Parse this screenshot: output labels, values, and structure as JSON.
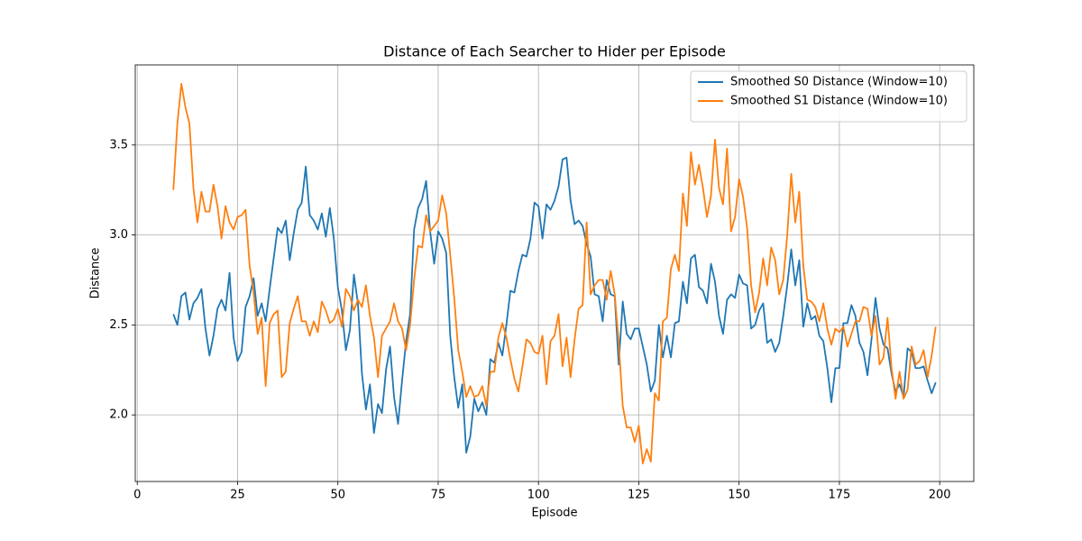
{
  "chart_data": {
    "type": "line",
    "title": "Distance of Each Searcher to Hider per Episode",
    "x_label": "Episode",
    "y_label": "Distance",
    "x": [
      9,
      10,
      11,
      12,
      13,
      14,
      15,
      16,
      17,
      18,
      19,
      20,
      21,
      22,
      23,
      24,
      25,
      26,
      27,
      28,
      29,
      30,
      31,
      32,
      33,
      34,
      35,
      36,
      37,
      38,
      39,
      40,
      41,
      42,
      43,
      44,
      45,
      46,
      47,
      48,
      49,
      50,
      51,
      52,
      53,
      54,
      55,
      56,
      57,
      58,
      59,
      60,
      61,
      62,
      63,
      64,
      65,
      66,
      67,
      68,
      69,
      70,
      71,
      72,
      73,
      74,
      75,
      76,
      77,
      78,
      79,
      80,
      81,
      82,
      83,
      84,
      85,
      86,
      87,
      88,
      89,
      90,
      91,
      92,
      93,
      94,
      95,
      96,
      97,
      98,
      99,
      100,
      101,
      102,
      103,
      104,
      105,
      106,
      107,
      108,
      109,
      110,
      111,
      112,
      113,
      114,
      115,
      116,
      117,
      118,
      119,
      120,
      121,
      122,
      123,
      124,
      125,
      126,
      127,
      128,
      129,
      130,
      131,
      132,
      133,
      134,
      135,
      136,
      137,
      138,
      139,
      140,
      141,
      142,
      143,
      144,
      145,
      146,
      147,
      148,
      149,
      150,
      151,
      152,
      153,
      154,
      155,
      156,
      157,
      158,
      159,
      160,
      161,
      162,
      163,
      164,
      165,
      166,
      167,
      168,
      169,
      170,
      171,
      172,
      173,
      174,
      175,
      176,
      177,
      178,
      179,
      180,
      181,
      182,
      183,
      184,
      185,
      186,
      187,
      188,
      189,
      190,
      191,
      192,
      193,
      194,
      195,
      196,
      197,
      198,
      199
    ],
    "series": [
      {
        "name": "Smoothed S0 Distance (Window=10)",
        "color": "#1f77b4",
        "values": [
          2.56,
          2.5,
          2.66,
          2.68,
          2.53,
          2.62,
          2.65,
          2.7,
          2.48,
          2.33,
          2.44,
          2.59,
          2.64,
          2.58,
          2.79,
          2.43,
          2.3,
          2.35,
          2.6,
          2.66,
          2.76,
          2.55,
          2.62,
          2.52,
          2.7,
          2.87,
          3.04,
          3.01,
          3.08,
          2.86,
          3.01,
          3.14,
          3.18,
          3.38,
          3.11,
          3.08,
          3.03,
          3.12,
          2.99,
          3.15,
          2.98,
          2.71,
          2.58,
          2.36,
          2.47,
          2.78,
          2.62,
          2.23,
          2.03,
          2.17,
          1.9,
          2.06,
          2.01,
          2.25,
          2.38,
          2.1,
          1.95,
          2.19,
          2.41,
          2.56,
          3.03,
          3.15,
          3.2,
          3.3,
          3.02,
          2.84,
          3.02,
          2.98,
          2.9,
          2.44,
          2.21,
          2.04,
          2.17,
          1.79,
          1.88,
          2.09,
          2.02,
          2.07,
          2.0,
          2.31,
          2.29,
          2.4,
          2.33,
          2.5,
          2.69,
          2.68,
          2.8,
          2.89,
          2.88,
          2.98,
          3.18,
          3.16,
          2.98,
          3.17,
          3.14,
          3.19,
          3.27,
          3.42,
          3.43,
          3.19,
          3.06,
          3.08,
          3.05,
          2.95,
          2.88,
          2.67,
          2.66,
          2.52,
          2.75,
          2.67,
          2.66,
          2.28,
          2.63,
          2.45,
          2.42,
          2.48,
          2.48,
          2.38,
          2.28,
          2.13,
          2.19,
          2.5,
          2.32,
          2.44,
          2.32,
          2.51,
          2.52,
          2.74,
          2.62,
          2.87,
          2.89,
          2.71,
          2.69,
          2.62,
          2.84,
          2.74,
          2.55,
          2.45,
          2.64,
          2.67,
          2.65,
          2.78,
          2.73,
          2.72,
          2.48,
          2.5,
          2.58,
          2.62,
          2.4,
          2.42,
          2.35,
          2.4,
          2.55,
          2.72,
          2.92,
          2.72,
          2.86,
          2.49,
          2.62,
          2.53,
          2.55,
          2.44,
          2.41,
          2.26,
          2.07,
          2.26,
          2.26,
          2.51,
          2.51,
          2.61,
          2.55,
          2.4,
          2.35,
          2.22,
          2.42,
          2.65,
          2.48,
          2.39,
          2.37,
          2.23,
          2.13,
          2.17,
          2.1,
          2.37,
          2.35,
          2.26,
          2.26,
          2.27,
          2.19,
          2.12,
          2.18
        ]
      },
      {
        "name": "Smoothed S1 Distance (Window=10)",
        "color": "#ff7f0e",
        "values": [
          3.25,
          3.62,
          3.84,
          3.71,
          3.62,
          3.26,
          3.07,
          3.24,
          3.13,
          3.13,
          3.28,
          3.16,
          2.98,
          3.16,
          3.07,
          3.03,
          3.1,
          3.11,
          3.14,
          2.83,
          2.68,
          2.45,
          2.54,
          2.16,
          2.51,
          2.56,
          2.58,
          2.21,
          2.24,
          2.51,
          2.59,
          2.66,
          2.52,
          2.52,
          2.44,
          2.52,
          2.46,
          2.63,
          2.58,
          2.51,
          2.53,
          2.59,
          2.49,
          2.7,
          2.66,
          2.58,
          2.64,
          2.6,
          2.72,
          2.55,
          2.43,
          2.21,
          2.44,
          2.48,
          2.52,
          2.62,
          2.52,
          2.48,
          2.36,
          2.5,
          2.75,
          2.94,
          2.93,
          3.11,
          3.02,
          3.05,
          3.08,
          3.22,
          3.12,
          2.89,
          2.65,
          2.36,
          2.24,
          2.1,
          2.16,
          2.1,
          2.11,
          2.16,
          2.05,
          2.24,
          2.24,
          2.43,
          2.51,
          2.43,
          2.31,
          2.2,
          2.13,
          2.27,
          2.42,
          2.4,
          2.35,
          2.34,
          2.44,
          2.17,
          2.41,
          2.44,
          2.56,
          2.27,
          2.43,
          2.21,
          2.42,
          2.59,
          2.61,
          3.07,
          2.67,
          2.72,
          2.75,
          2.75,
          2.64,
          2.8,
          2.67,
          2.4,
          2.05,
          1.93,
          1.93,
          1.85,
          1.94,
          1.73,
          1.81,
          1.74,
          2.12,
          2.08,
          2.52,
          2.54,
          2.81,
          2.89,
          2.8,
          3.23,
          3.05,
          3.46,
          3.28,
          3.39,
          3.26,
          3.1,
          3.22,
          3.53,
          3.26,
          3.17,
          3.48,
          3.02,
          3.1,
          3.31,
          3.21,
          3.04,
          2.72,
          2.57,
          2.68,
          2.87,
          2.72,
          2.93,
          2.86,
          2.67,
          2.75,
          3.0,
          3.34,
          3.07,
          3.24,
          2.83,
          2.64,
          2.63,
          2.6,
          2.52,
          2.62,
          2.48,
          2.39,
          2.48,
          2.46,
          2.49,
          2.38,
          2.45,
          2.52,
          2.52,
          2.6,
          2.59,
          2.44,
          2.55,
          2.28,
          2.32,
          2.54,
          2.26,
          2.09,
          2.24,
          2.09,
          2.14,
          2.38,
          2.28,
          2.3,
          2.36,
          2.21,
          2.33,
          2.49
        ]
      }
    ],
    "xlim": [
      -0.5,
      208.5
    ],
    "ylim": [
      1.63,
      3.945
    ],
    "xticks": [
      0,
      25,
      50,
      75,
      100,
      125,
      150,
      175,
      200
    ],
    "yticks": [
      {
        "value": 2,
        "label": "2.0"
      },
      {
        "value": 2.5,
        "label": "2.5"
      },
      {
        "value": 3,
        "label": "3.0"
      },
      {
        "value": 3.5,
        "label": "3.5"
      }
    ],
    "grid": true,
    "legend": "upper right"
  }
}
